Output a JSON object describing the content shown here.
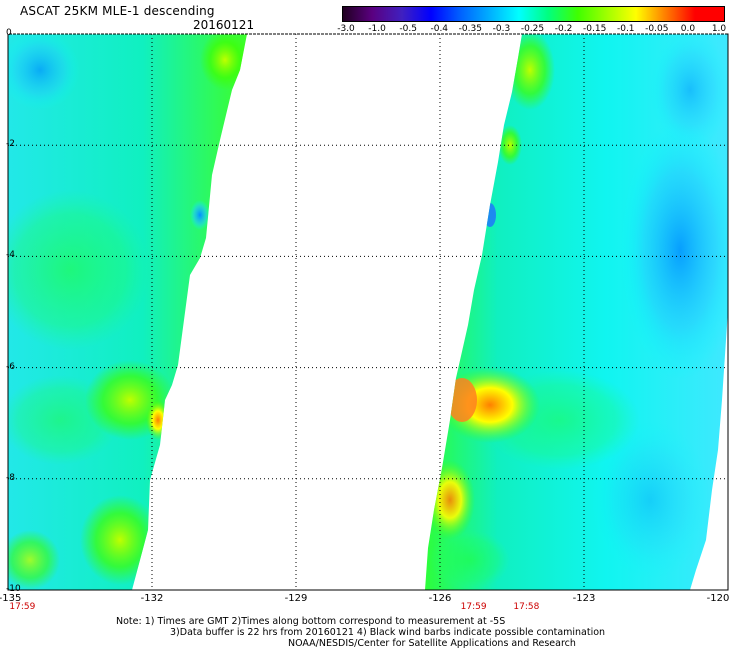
{
  "header": {
    "title": "ASCAT 25KM MLE-1 descending",
    "date": "20160121"
  },
  "colorbar": {
    "labels": [
      "-3.0",
      "-1.0",
      "-0.5",
      "-0.4",
      "-0.35",
      "-0.3",
      "-0.25",
      "-0.2",
      "-0.15",
      "-0.1",
      "-0.05",
      "0.0",
      "1.0"
    ],
    "colors": [
      "#200020",
      "#5a0080",
      "#4020c0",
      "#0000ff",
      "#0060ff",
      "#00b0ff",
      "#00ffff",
      "#00ff80",
      "#40ff00",
      "#a0ff00",
      "#ffff00",
      "#ff8000",
      "#ff0000"
    ]
  },
  "map": {
    "lat_labels": [
      "0",
      "-2",
      "-4",
      "-6",
      "-8",
      "-10"
    ],
    "lon_labels": [
      "-135",
      "-132",
      "-129",
      "-126",
      "-123",
      "-120"
    ],
    "lat_range": [
      0,
      -10
    ],
    "lon_range": [
      -135,
      -120
    ],
    "time_labels": [
      {
        "text": "17:59",
        "lon": -134.7
      },
      {
        "text": "17:59",
        "lon": -125.3
      },
      {
        "text": "17:58",
        "lon": -124.2
      }
    ]
  },
  "notes": {
    "line1": "Note: 1) Times are GMT 2)Times along bottom correspond to measurement at -5S",
    "line2": "3)Data buffer is 22 hrs from 20160121 4) Black wind barbs indicate possible contamination",
    "line3": "NOAA/NESDIS/Center for Satellite Applications and Research"
  }
}
